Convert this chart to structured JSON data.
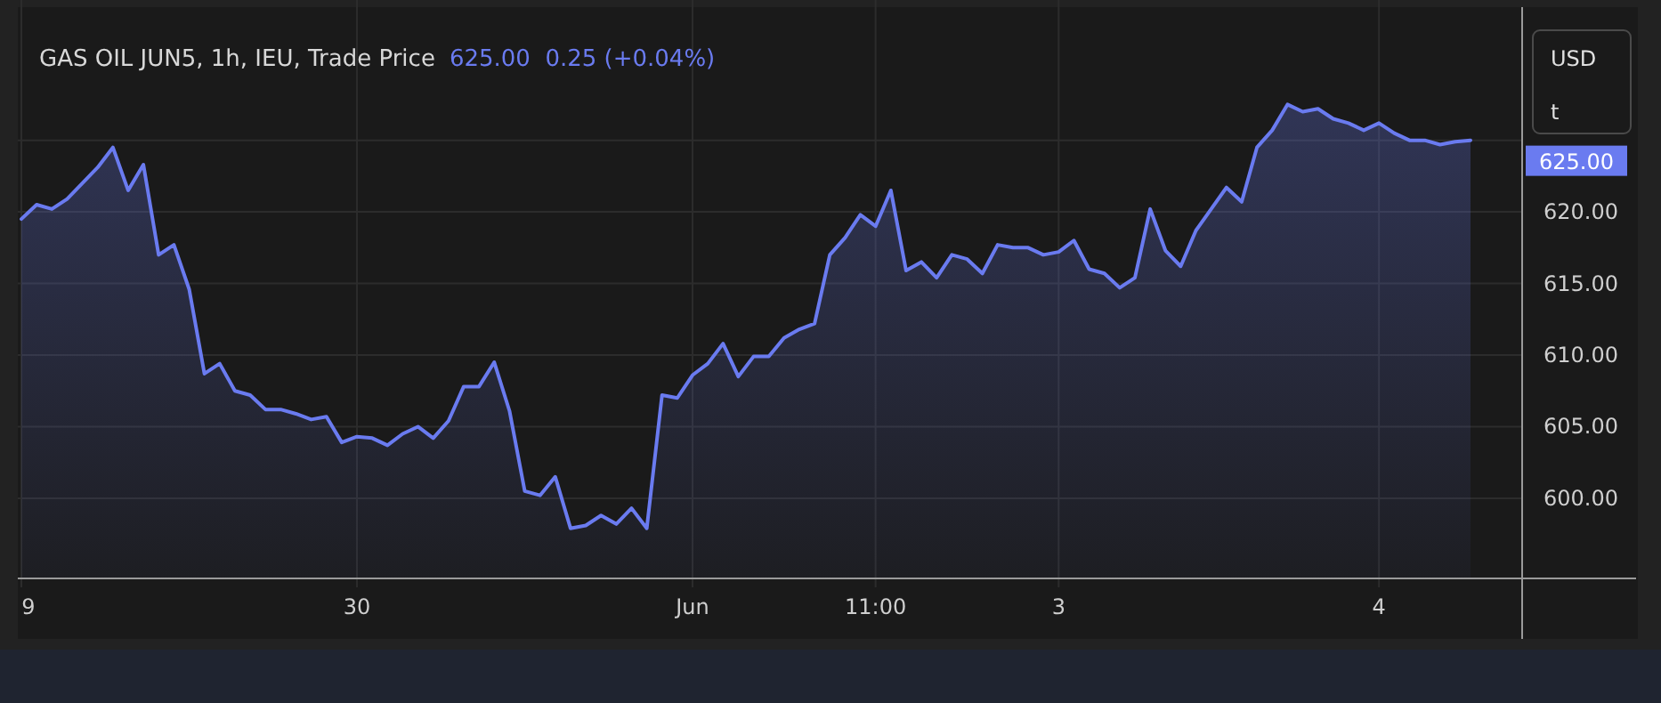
{
  "chart_data": {
    "type": "area",
    "title": "GAS OIL JUN5, 1h, IEU, Trade Price",
    "subtitle": "625.00  0.25 (+0.04%)",
    "ylabel": "USD",
    "annotations": [
      "t",
      "625.00"
    ],
    "categories": [
      "9",
      null,
      null,
      null,
      null,
      null,
      null,
      null,
      null,
      null,
      null,
      null,
      null,
      null,
      null,
      null,
      null,
      null,
      null,
      null,
      null,
      null,
      "30",
      null,
      null,
      null,
      null,
      null,
      null,
      null,
      null,
      null,
      null,
      null,
      null,
      null,
      null,
      null,
      null,
      null,
      null,
      null,
      null,
      null,
      "Jun",
      null,
      null,
      null,
      null,
      null,
      null,
      null,
      null,
      null,
      null,
      null,
      "11:00",
      null,
      null,
      null,
      null,
      null,
      null,
      null,
      null,
      null,
      null,
      null,
      "3",
      null,
      null,
      null,
      null,
      null,
      null,
      null,
      null,
      null,
      null,
      null,
      null,
      null,
      null,
      null,
      null,
      null,
      null,
      null,
      null,
      "4",
      null,
      null,
      null,
      null,
      null,
      null
    ],
    "series": [
      {
        "color": "#6a7bf0",
        "values": [
          619.5,
          620.5,
          620.2,
          620.9,
          622.0,
          623.1,
          624.5,
          621.5,
          623.3,
          617.0,
          617.7,
          614.6,
          608.7,
          609.4,
          607.5,
          607.2,
          606.2,
          606.2,
          605.9,
          605.5,
          605.7,
          603.9,
          604.3,
          604.2,
          603.7,
          604.5,
          605.0,
          604.2,
          605.4,
          607.8,
          607.8,
          609.5,
          606.1,
          600.5,
          600.2,
          601.5,
          597.9,
          598.1,
          598.8,
          598.2,
          599.3,
          597.9,
          607.2,
          607.0,
          608.6,
          609.4,
          610.8,
          608.5,
          609.9,
          609.9,
          611.2,
          611.8,
          612.2,
          617.0,
          618.2,
          619.8,
          619.0,
          621.5,
          615.9,
          616.5,
          615.4,
          617.0,
          616.7,
          615.7,
          617.7,
          617.5,
          617.5,
          617.0,
          617.2,
          618.0,
          616.0,
          615.7,
          614.7,
          615.4,
          620.2,
          617.3,
          616.2,
          618.7,
          620.2,
          621.7,
          620.7,
          624.5,
          625.7,
          627.5,
          627.0,
          627.2,
          626.5,
          626.2,
          625.7,
          626.2,
          625.5,
          625.0,
          625.0,
          624.7,
          624.9,
          625.0
        ]
      }
    ],
    "ylim": [
      594.4,
      634.3
    ],
    "yticks": [
      {
        "value": 600,
        "label": "600.00"
      },
      {
        "value": 605,
        "label": "605.00"
      },
      {
        "value": 610,
        "label": "610.00"
      },
      {
        "value": 615,
        "label": "615.00"
      },
      {
        "value": 620,
        "label": "620.00"
      },
      {
        "value": 625,
        "label": null
      }
    ],
    "grid": true,
    "marker": "none",
    "line_style": "solid"
  }
}
